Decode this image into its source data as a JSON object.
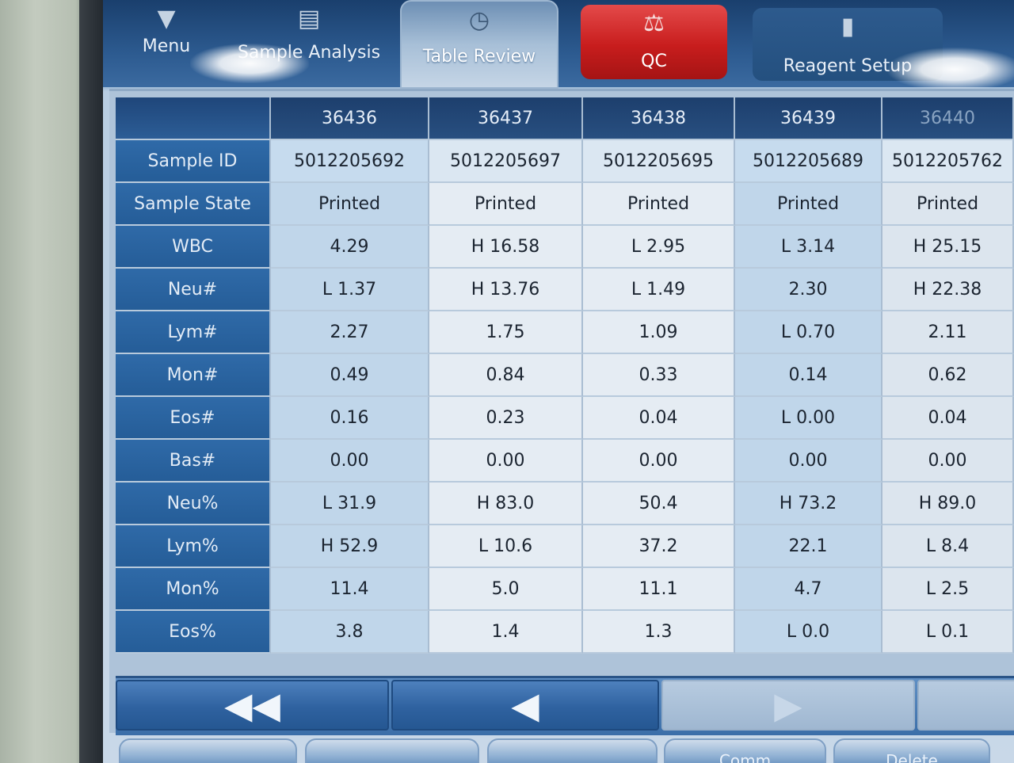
{
  "nav": {
    "tabs": [
      {
        "label": "Menu",
        "icon": "chevron-down-icon"
      },
      {
        "label": "Sample Analysis",
        "icon": "analysis-icon"
      },
      {
        "label": "Table Review",
        "icon": "clock-icon",
        "active": true
      },
      {
        "label": "QC",
        "icon": "balance-scale-icon",
        "color": "#d32626"
      },
      {
        "label": "Reagent Setup",
        "icon": "reagent-bottle-icon"
      }
    ]
  },
  "table": {
    "columns": [
      "36436",
      "36437",
      "36438",
      "36439",
      "36440"
    ],
    "rows": [
      {
        "label": "Sample ID",
        "values": [
          "5012205692",
          "5012205697",
          "5012205695",
          "5012205689",
          "5012205762"
        ]
      },
      {
        "label": "Sample State",
        "values": [
          "Printed",
          "Printed",
          "Printed",
          "Printed",
          "Printed"
        ]
      },
      {
        "label": "WBC",
        "values": [
          "4.29",
          "H 16.58",
          "L 2.95",
          "L 3.14",
          "H 25.15"
        ]
      },
      {
        "label": "Neu#",
        "values": [
          "L 1.37",
          "H 13.76",
          "L 1.49",
          "2.30",
          "H 22.38"
        ]
      },
      {
        "label": "Lym#",
        "values": [
          "2.27",
          "1.75",
          "1.09",
          "L 0.70",
          "2.11"
        ]
      },
      {
        "label": "Mon#",
        "values": [
          "0.49",
          "0.84",
          "0.33",
          "0.14",
          "0.62"
        ]
      },
      {
        "label": "Eos#",
        "values": [
          "0.16",
          "0.23",
          "0.04",
          "L 0.00",
          "0.04"
        ]
      },
      {
        "label": "Bas#",
        "values": [
          "0.00",
          "0.00",
          "0.00",
          "0.00",
          "0.00"
        ]
      },
      {
        "label": "Neu%",
        "values": [
          "L 31.9",
          "H 83.0",
          "50.4",
          "H 73.2",
          "H 89.0"
        ]
      },
      {
        "label": "Lym%",
        "values": [
          "H 52.9",
          "L 10.6",
          "37.2",
          "22.1",
          "L 8.4"
        ]
      },
      {
        "label": "Mon%",
        "values": [
          "11.4",
          "5.0",
          "11.1",
          "4.7",
          "L 2.5"
        ]
      },
      {
        "label": "Eos%",
        "values": [
          "3.8",
          "1.4",
          "1.3",
          "L 0.0",
          "L 0.1"
        ]
      }
    ]
  },
  "pager": {
    "first_icon": "double-left-arrow-icon",
    "prev_icon": "left-arrow-icon",
    "next_icon": "right-arrow-icon",
    "last_icon": "double-right-arrow-icon"
  },
  "bottom_buttons": [
    "",
    "",
    "",
    "Comm",
    "Delete"
  ],
  "colors": {
    "flag_high": "#c2283f",
    "flag_low": "#2a55b8",
    "qc_tab": "#d32626"
  }
}
